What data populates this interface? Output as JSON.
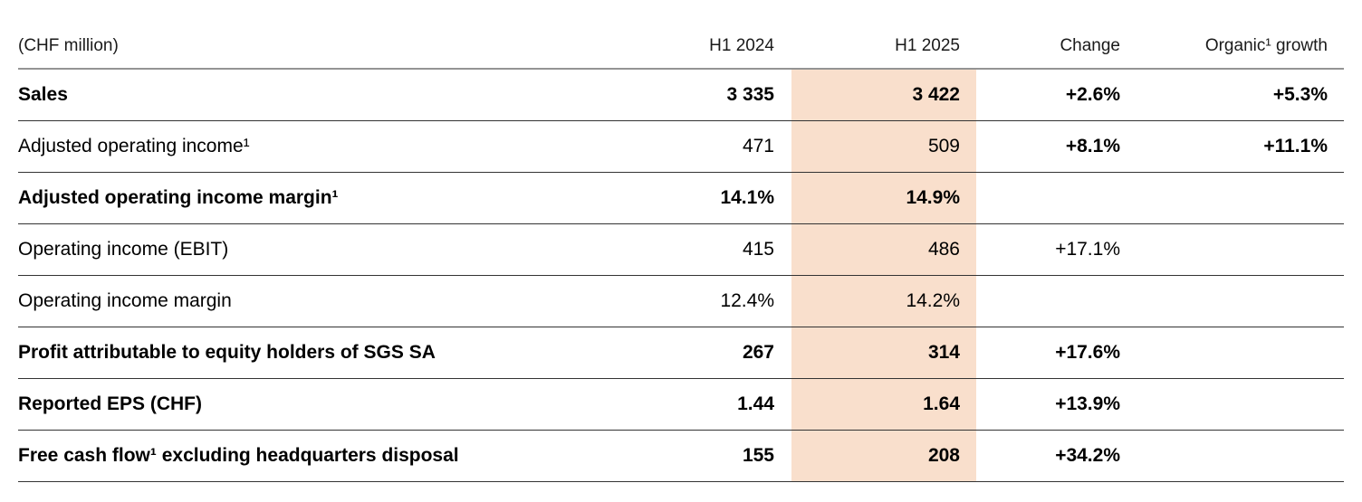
{
  "table": {
    "unit_label": "(CHF million)",
    "columns": {
      "h1_2024": "H1 2024",
      "h1_2025": "H1 2025",
      "change": "Change",
      "organic_growth": "Organic¹ growth"
    },
    "highlight_color": "#f9dfcc",
    "rows": [
      {
        "label": "Sales",
        "h1_2024": "3 335",
        "h1_2025": "3 422",
        "change": "+2.6%",
        "organic_growth": "+5.3%"
      },
      {
        "label": "Adjusted operating income¹",
        "h1_2024": "471",
        "h1_2025": "509",
        "change": "+8.1%",
        "organic_growth": "+11.1%"
      },
      {
        "label": "Adjusted operating income margin¹",
        "h1_2024": "14.1%",
        "h1_2025": "14.9%",
        "change": "",
        "organic_growth": ""
      },
      {
        "label": "Operating income (EBIT)",
        "h1_2024": "415",
        "h1_2025": "486",
        "change": "+17.1%",
        "organic_growth": ""
      },
      {
        "label": "Operating income margin",
        "h1_2024": "12.4%",
        "h1_2025": "14.2%",
        "change": "",
        "organic_growth": ""
      },
      {
        "label": "Profit attributable to equity holders of SGS SA",
        "h1_2024": "267",
        "h1_2025": "314",
        "change": "+17.6%",
        "organic_growth": ""
      },
      {
        "label": "Reported EPS (CHF)",
        "h1_2024": "1.44",
        "h1_2025": "1.64",
        "change": "+13.9%",
        "organic_growth": ""
      },
      {
        "label": "Free cash flow¹ excluding headquarters disposal",
        "h1_2024": "155",
        "h1_2025": "208",
        "change": "+34.2%",
        "organic_growth": ""
      }
    ]
  }
}
